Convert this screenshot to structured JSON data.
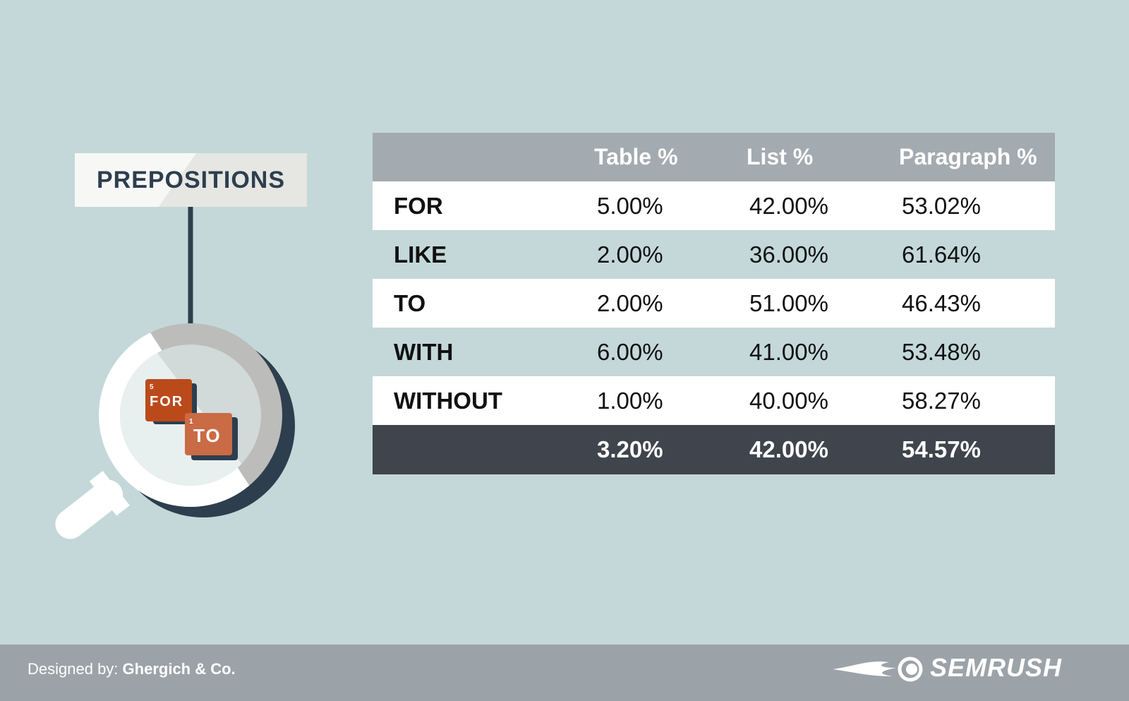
{
  "title": "PREPOSITIONS",
  "illustration": {
    "tile_for": {
      "label": "FOR",
      "number": "5",
      "color": "#bb4a1b"
    },
    "tile_to": {
      "label": "TO",
      "number": "1",
      "color": "#c96b45"
    }
  },
  "colors": {
    "background": "#c4d8d9",
    "header": "#a3abb0",
    "total_row": "#40444c",
    "accent_dark": "#2d3e4e"
  },
  "chart_data": {
    "type": "table",
    "columns": [
      "",
      "Table %",
      "List %",
      "Paragraph %"
    ],
    "rows": [
      {
        "label": "FOR",
        "values": [
          "5.00%",
          "42.00%",
          "53.02%"
        ]
      },
      {
        "label": "LIKE",
        "values": [
          "2.00%",
          "36.00%",
          "61.64%"
        ]
      },
      {
        "label": "TO",
        "values": [
          "2.00%",
          "51.00%",
          "46.43%"
        ]
      },
      {
        "label": "WITH",
        "values": [
          "6.00%",
          "41.00%",
          "53.48%"
        ]
      },
      {
        "label": "WITHOUT",
        "values": [
          "1.00%",
          "40.00%",
          "58.27%"
        ]
      }
    ],
    "total": {
      "label": "",
      "values": [
        "3.20%",
        "42.00%",
        "54.57%"
      ]
    }
  },
  "footer": {
    "designed_by_label": "Designed by:",
    "designer": "Ghergich & Co.",
    "brand": "SEMRUSH"
  }
}
